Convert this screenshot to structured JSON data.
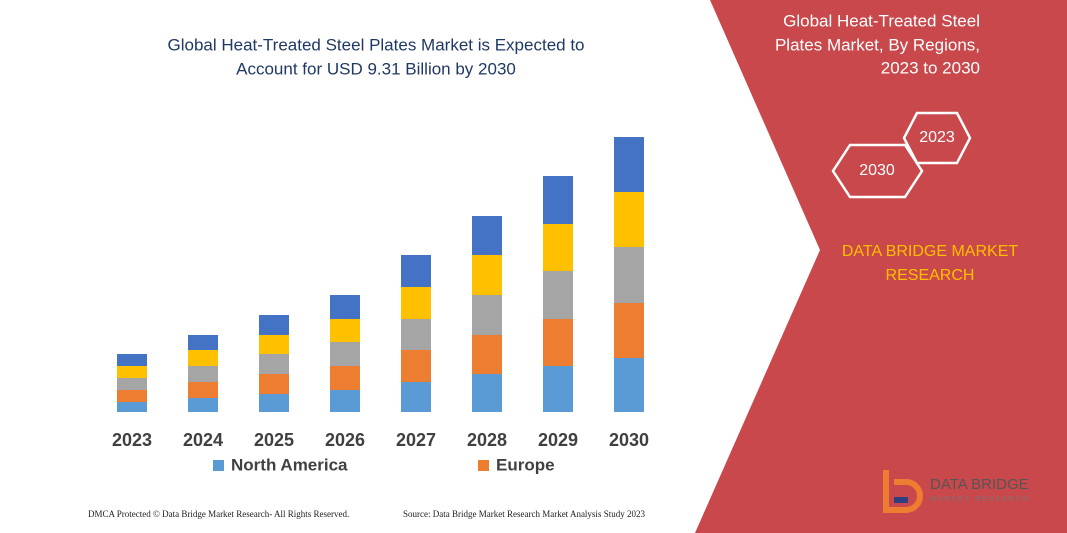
{
  "chart_data": {
    "type": "stacked_bar",
    "title": [
      "Global Heat-Treated Steel Plates Market is Expected to",
      "Account for USD 9.31 Billion by 2030"
    ],
    "categories": [
      "2023",
      "2024",
      "2025",
      "2026",
      "2027",
      "2028",
      "2029",
      "2030"
    ],
    "series": [
      {
        "name": "North America",
        "color": "#5b9bd5",
        "values": [
          10,
          14,
          18,
          22,
          30,
          38,
          46,
          54
        ]
      },
      {
        "name": "Europe",
        "color": "#ed7d31",
        "values": [
          12,
          16,
          20,
          24,
          32,
          39,
          47,
          55
        ]
      },
      {
        "color": "#a5a5a5",
        "values": [
          12,
          16,
          20,
          24,
          31,
          40,
          48,
          56
        ]
      },
      {
        "color": "#ffc000",
        "values": [
          12,
          16,
          19,
          23,
          32,
          40,
          47,
          55
        ]
      },
      {
        "color": "#4472c4",
        "values": [
          12,
          15,
          20,
          24,
          32,
          39,
          48,
          55
        ]
      }
    ]
  },
  "panel": {
    "title": [
      "Global Heat-Treated Steel",
      "Plates Market, By Regions,",
      "2023 to 2030"
    ],
    "hexagons": [
      "2030",
      "2023"
    ],
    "brand": [
      "DATA BRIDGE MARKET",
      "RESEARCH"
    ],
    "logo": [
      "DATA BRIDGE",
      "MARKET RESEARCH"
    ]
  },
  "footer": {
    "left": "DMCA Protected © Data Bridge Market Research-  All Rights Reserved.",
    "right": "Source: Data Bridge Market Research  Market Analysis Study 2023"
  }
}
